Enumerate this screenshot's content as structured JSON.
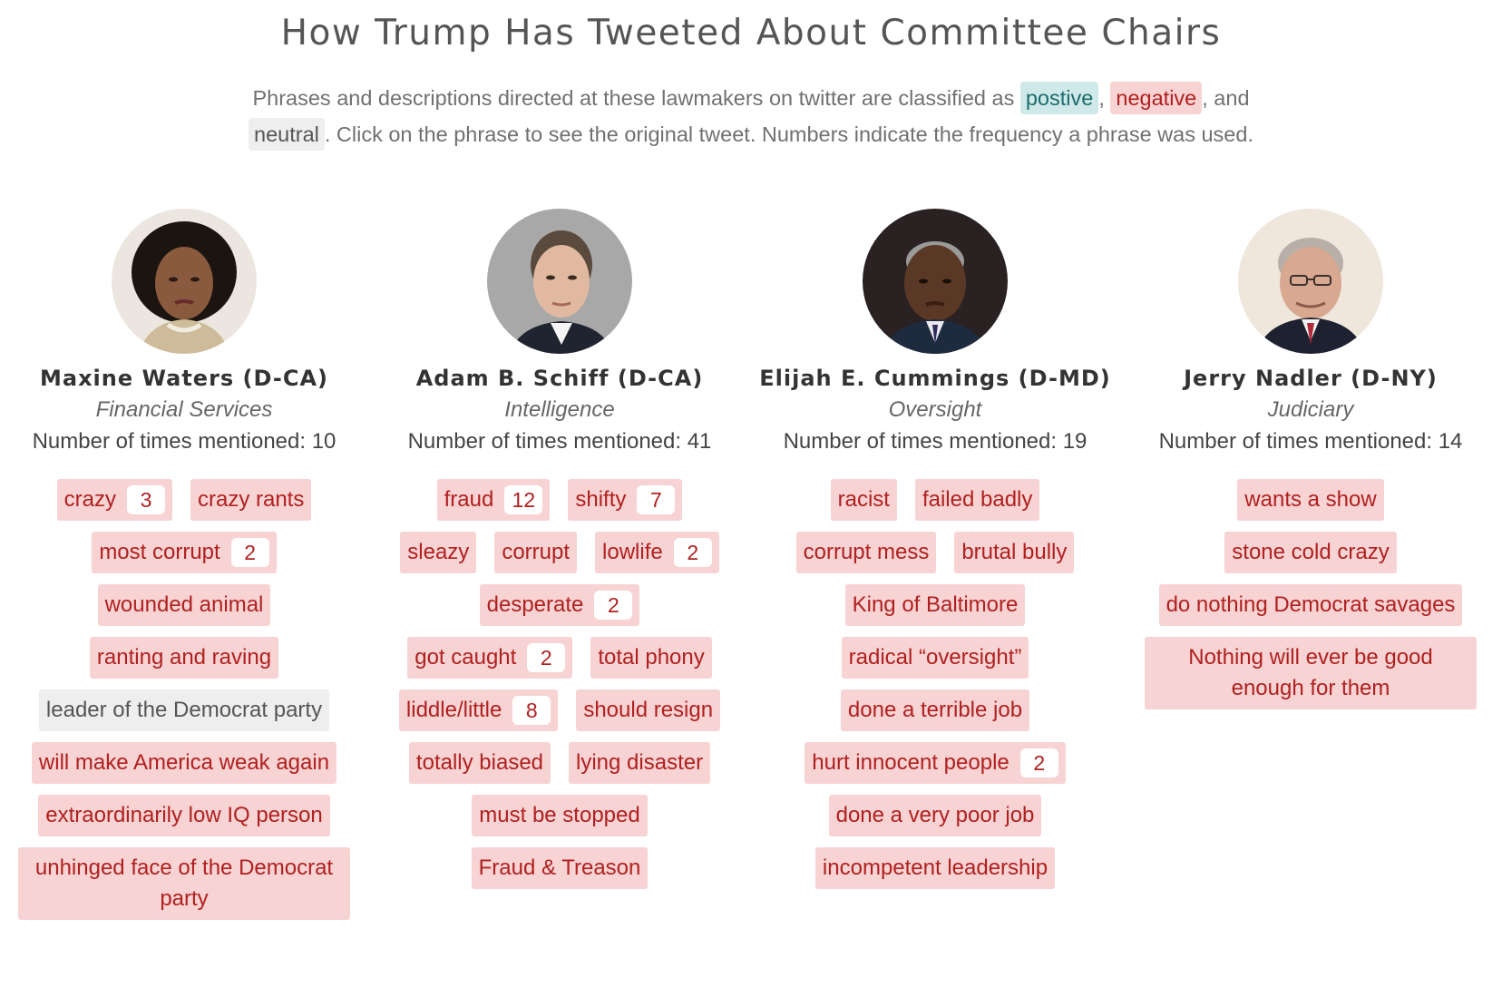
{
  "title": "How Trump Has Tweeted About Committee Chairs",
  "intro": {
    "part1": "Phrases and descriptions directed at these lawmakers on twitter are classified as ",
    "positive": "postive",
    "sep1": ", ",
    "negative": "negative",
    "part2": ", and",
    "neutral": "neutral",
    "part3": ". Click on the phrase to see the original tweet. Numbers indicate the frequency a phrase was used."
  },
  "colors": {
    "negative_bg": "#f8d3d3",
    "negative_text": "#b02020",
    "positive_bg": "#cfe9e9",
    "positive_text": "#1b6b6b",
    "neutral_bg": "#eeeeee",
    "neutral_text": "#555555"
  },
  "chairs": [
    {
      "name": "Maxine Waters (D-CA)",
      "committee": "Financial Services",
      "mentions": "Number of times mentioned: 10",
      "rows": [
        [
          {
            "text": "crazy",
            "count": "3"
          },
          {
            "text": "crazy rants"
          }
        ],
        [
          {
            "text": "most corrupt",
            "count": "2"
          }
        ],
        [
          {
            "text": "wounded animal"
          }
        ],
        [
          {
            "text": "ranting and raving"
          }
        ],
        [
          {
            "text": "leader of the Democrat party",
            "sentiment": "neutral"
          }
        ],
        [
          {
            "text": "will make America weak again"
          }
        ],
        [
          {
            "text": "extraordinarily low IQ person"
          }
        ],
        [
          {
            "text": "unhinged face of the Democrat party",
            "wrap": true
          }
        ]
      ]
    },
    {
      "name": "Adam B. Schiff (D-CA)",
      "committee": "Intelligence",
      "mentions": "Number of times mentioned: 41",
      "rows": [
        [
          {
            "text": "fraud",
            "count": "12"
          },
          {
            "text": "shifty",
            "count": "7"
          }
        ],
        [
          {
            "text": "sleazy"
          },
          {
            "text": "corrupt"
          },
          {
            "text": "lowlife",
            "count": "2"
          }
        ],
        [
          {
            "text": "desperate",
            "count": "2"
          }
        ],
        [
          {
            "text": "got caught",
            "count": "2"
          },
          {
            "text": "total phony"
          }
        ],
        [
          {
            "text": "liddle/little",
            "count": "8"
          },
          {
            "text": "should resign"
          }
        ],
        [
          {
            "text": "totally biased"
          },
          {
            "text": "lying disaster"
          }
        ],
        [
          {
            "text": "must be stopped"
          }
        ],
        [
          {
            "text": "Fraud & Treason"
          }
        ]
      ]
    },
    {
      "name": "Elijah E. Cummings (D-MD)",
      "committee": "Oversight",
      "mentions": "Number of times mentioned: 19",
      "rows": [
        [
          {
            "text": "racist"
          },
          {
            "text": "failed badly"
          }
        ],
        [
          {
            "text": "corrupt mess"
          },
          {
            "text": "brutal bully"
          }
        ],
        [
          {
            "text": "King of Baltimore"
          }
        ],
        [
          {
            "text": "radical “oversight”"
          }
        ],
        [
          {
            "text": "done a terrible job"
          }
        ],
        [
          {
            "text": "hurt innocent people",
            "count": "2"
          }
        ],
        [
          {
            "text": "done a very poor job"
          }
        ],
        [
          {
            "text": "incompetent leadership"
          }
        ]
      ]
    },
    {
      "name": "Jerry Nadler (D-NY)",
      "committee": "Judiciary",
      "mentions": "Number of times mentioned: 14",
      "rows": [
        [
          {
            "text": "wants a show"
          }
        ],
        [
          {
            "text": "stone cold crazy"
          }
        ],
        [
          {
            "text": "do nothing Democrat savages"
          }
        ],
        [
          {
            "text": "Nothing will ever be good enough for them",
            "wrap": true
          }
        ]
      ]
    }
  ]
}
